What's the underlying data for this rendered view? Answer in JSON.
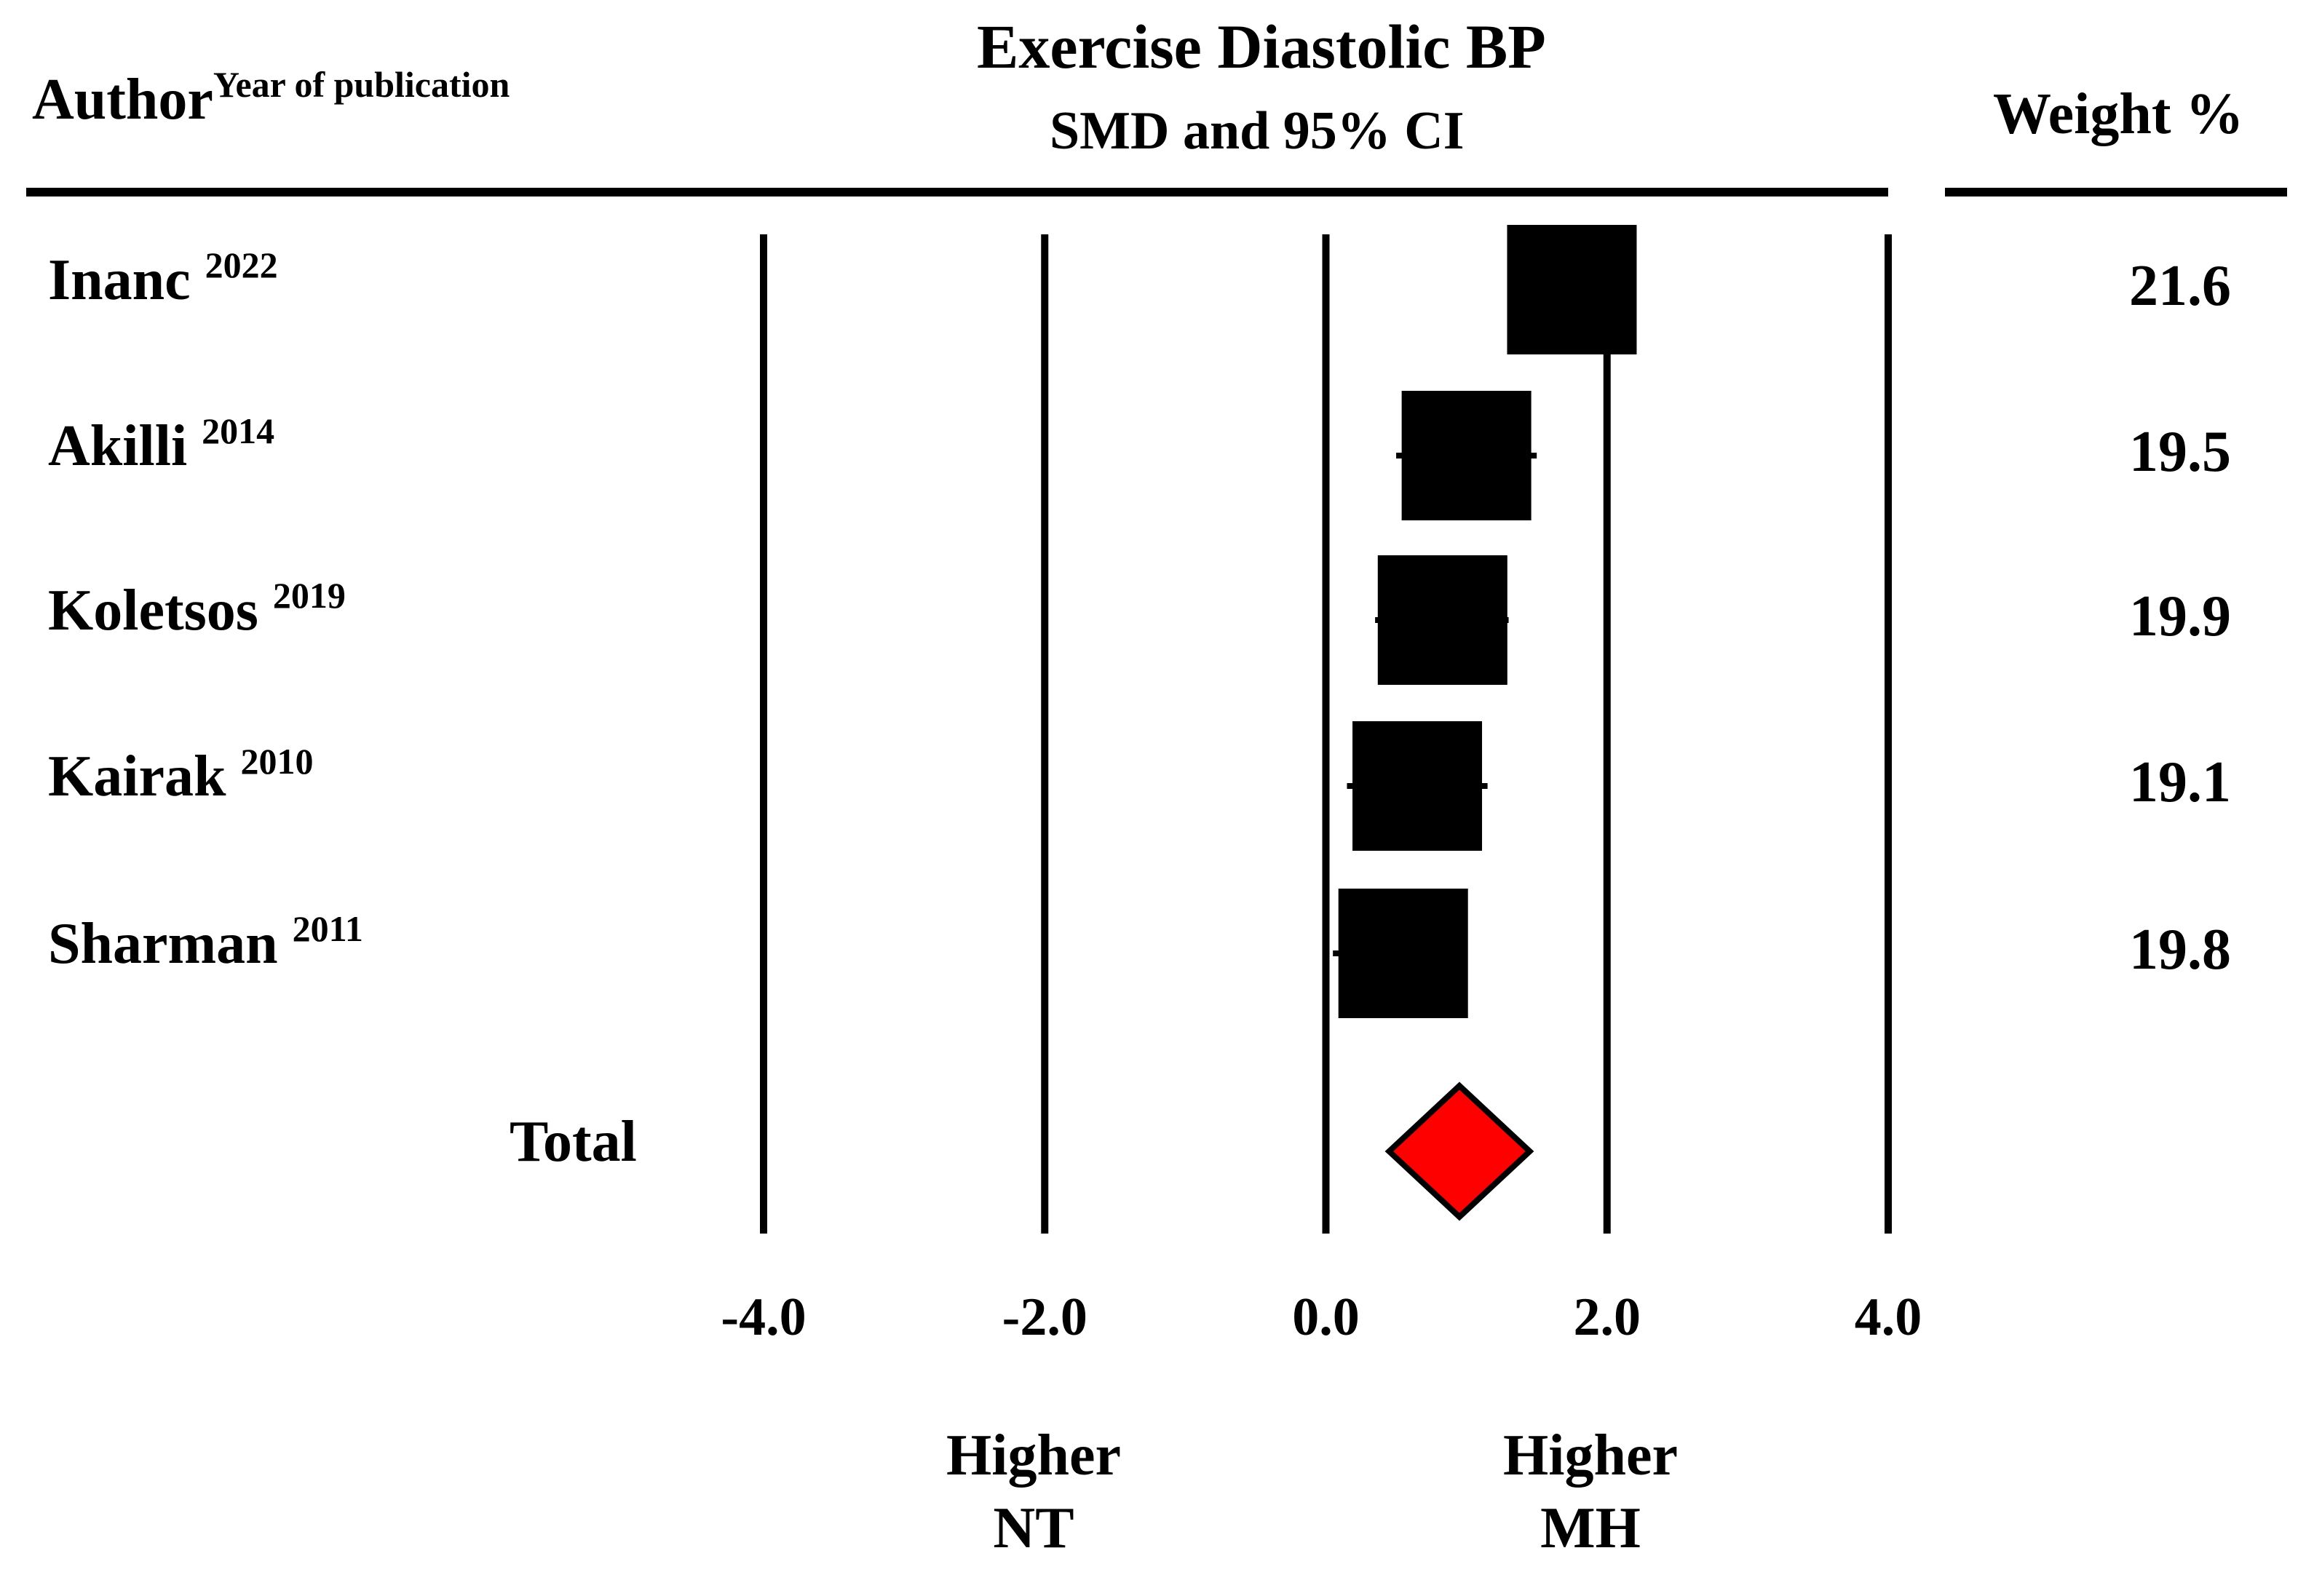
{
  "chart_data": {
    "type": "forest",
    "title": "Exercise Diastolic BP",
    "subtitle": "SMD and 95% CI",
    "column_headers": {
      "author": "Author",
      "author_sup": "Year  of publication",
      "weight": "Weight %"
    },
    "xlim": [
      -4.0,
      4.0
    ],
    "ticks": [
      -4.0,
      -2.0,
      0.0,
      2.0,
      4.0
    ],
    "tick_labels": [
      "-4.0",
      "-2.0",
      "0.0",
      "2.0",
      "4.0"
    ],
    "studies": [
      {
        "author": "Inanc",
        "year": "2022",
        "smd": 1.75,
        "ci_low": 1.3,
        "ci_high": 2.2,
        "weight": "21.6"
      },
      {
        "author": "Akilli",
        "year": "2014",
        "smd": 1.0,
        "ci_low": 0.5,
        "ci_high": 1.5,
        "weight": "19.5"
      },
      {
        "author": "Koletsos",
        "year": "2019",
        "smd": 0.83,
        "ci_low": 0.35,
        "ci_high": 1.3,
        "weight": "19.9"
      },
      {
        "author": "Kairak",
        "year": "2010",
        "smd": 0.65,
        "ci_low": 0.15,
        "ci_high": 1.15,
        "weight": "19.1"
      },
      {
        "author": "Sharman",
        "year": "2011",
        "smd": 0.55,
        "ci_low": 0.05,
        "ci_high": 1.0,
        "weight": "19.8"
      }
    ],
    "total": {
      "label": "Total",
      "smd": 0.95,
      "ci_low": 0.45,
      "ci_high": 1.45
    },
    "favours_left": [
      "Higher",
      "NT"
    ],
    "favours_right": [
      "Higher",
      "MH"
    ],
    "colors": {
      "box": "#000000",
      "diamond": "#ff0000",
      "lines": "#000000"
    }
  }
}
